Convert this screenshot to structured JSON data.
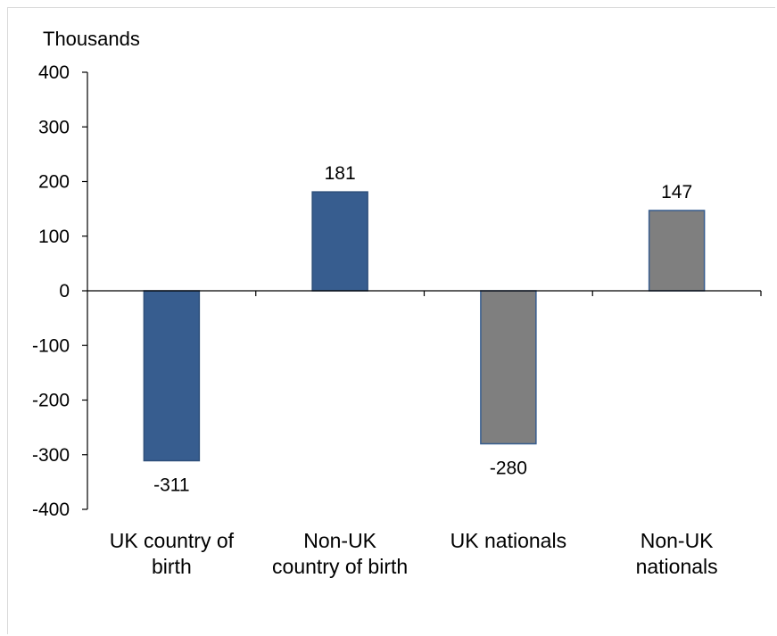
{
  "chart_data": {
    "type": "bar",
    "ylabel": "Thousands",
    "ylim": [
      -400,
      400
    ],
    "yticks": [
      400,
      300,
      200,
      100,
      0,
      -100,
      -200,
      -300,
      -400
    ],
    "categories": [
      [
        "UK country of",
        "birth"
      ],
      [
        "Non-UK",
        "country of birth"
      ],
      [
        "UK nationals"
      ],
      [
        "Non-UK",
        "nationals"
      ]
    ],
    "values": [
      -311,
      181,
      -280,
      147
    ],
    "data_labels": [
      "-311",
      "181",
      "-280",
      "147"
    ],
    "bar_colors": [
      "#375d8f",
      "#375d8f",
      "#7f7f7f",
      "#7f7f7f"
    ],
    "bar_borders": [
      "#2e4f7a",
      "#2e4f7a",
      "#375d8f",
      "#375d8f"
    ],
    "grid": false,
    "legend": "none"
  }
}
